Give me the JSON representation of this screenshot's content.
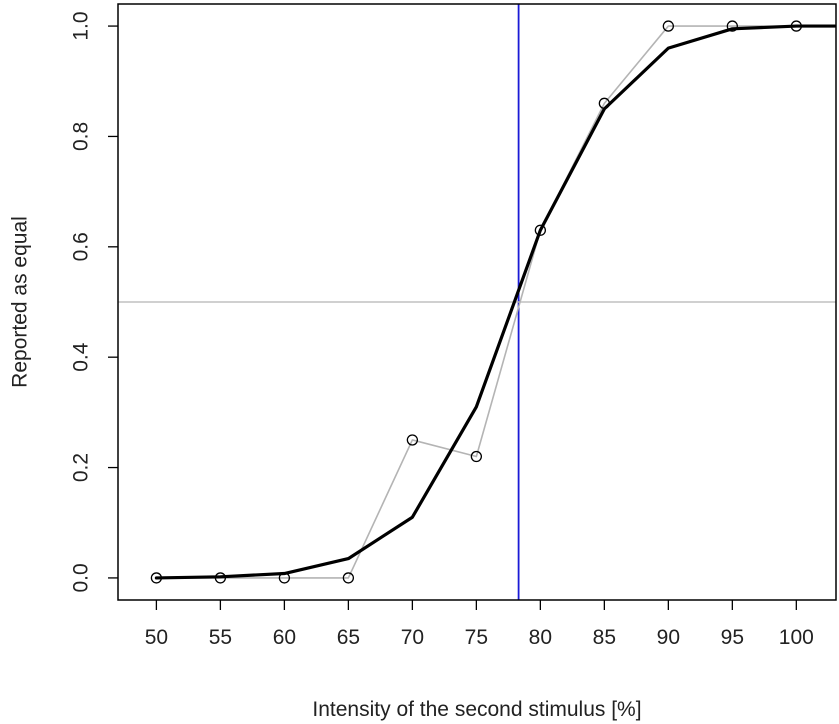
{
  "chart_data": {
    "type": "line",
    "title": "",
    "xlabel": "Intensity of the second stimulus [%]",
    "ylabel": "Reported as equal",
    "xlim": [
      47,
      103.1
    ],
    "ylim": [
      -0.04,
      1.04
    ],
    "x_ticks": [
      "50",
      "55",
      "60",
      "65",
      "70",
      "75",
      "80",
      "85",
      "90",
      "95",
      "100"
    ],
    "y_ticks": [
      "0.0",
      "0.2",
      "0.4",
      "0.6",
      "0.8",
      "1.0"
    ],
    "grid": false,
    "legend": "none",
    "series": [
      {
        "style": "observed",
        "color": "#b4b4b4",
        "marker": "open-circle",
        "x": [
          50,
          55,
          60,
          65,
          70,
          75,
          80,
          85,
          90,
          95,
          100
        ],
        "y": [
          0.0,
          0.0,
          0.0,
          0.0,
          0.25,
          0.22,
          0.63,
          0.86,
          1.0,
          1.0,
          1.0
        ]
      },
      {
        "style": "fitted",
        "color": "#000000",
        "marker": "none",
        "x": [
          50,
          55,
          60,
          65,
          70,
          75,
          80,
          85,
          90,
          95,
          100,
          103
        ],
        "y": [
          0.0,
          0.002,
          0.008,
          0.035,
          0.11,
          0.31,
          0.63,
          0.85,
          0.96,
          0.995,
          1.0,
          1.0
        ]
      }
    ],
    "reference_lines": [
      {
        "orientation": "vertical",
        "value": 78.3,
        "color": "#1a1ad6"
      },
      {
        "orientation": "horizontal",
        "value": 0.5,
        "color": "#c0c0c0"
      }
    ]
  }
}
